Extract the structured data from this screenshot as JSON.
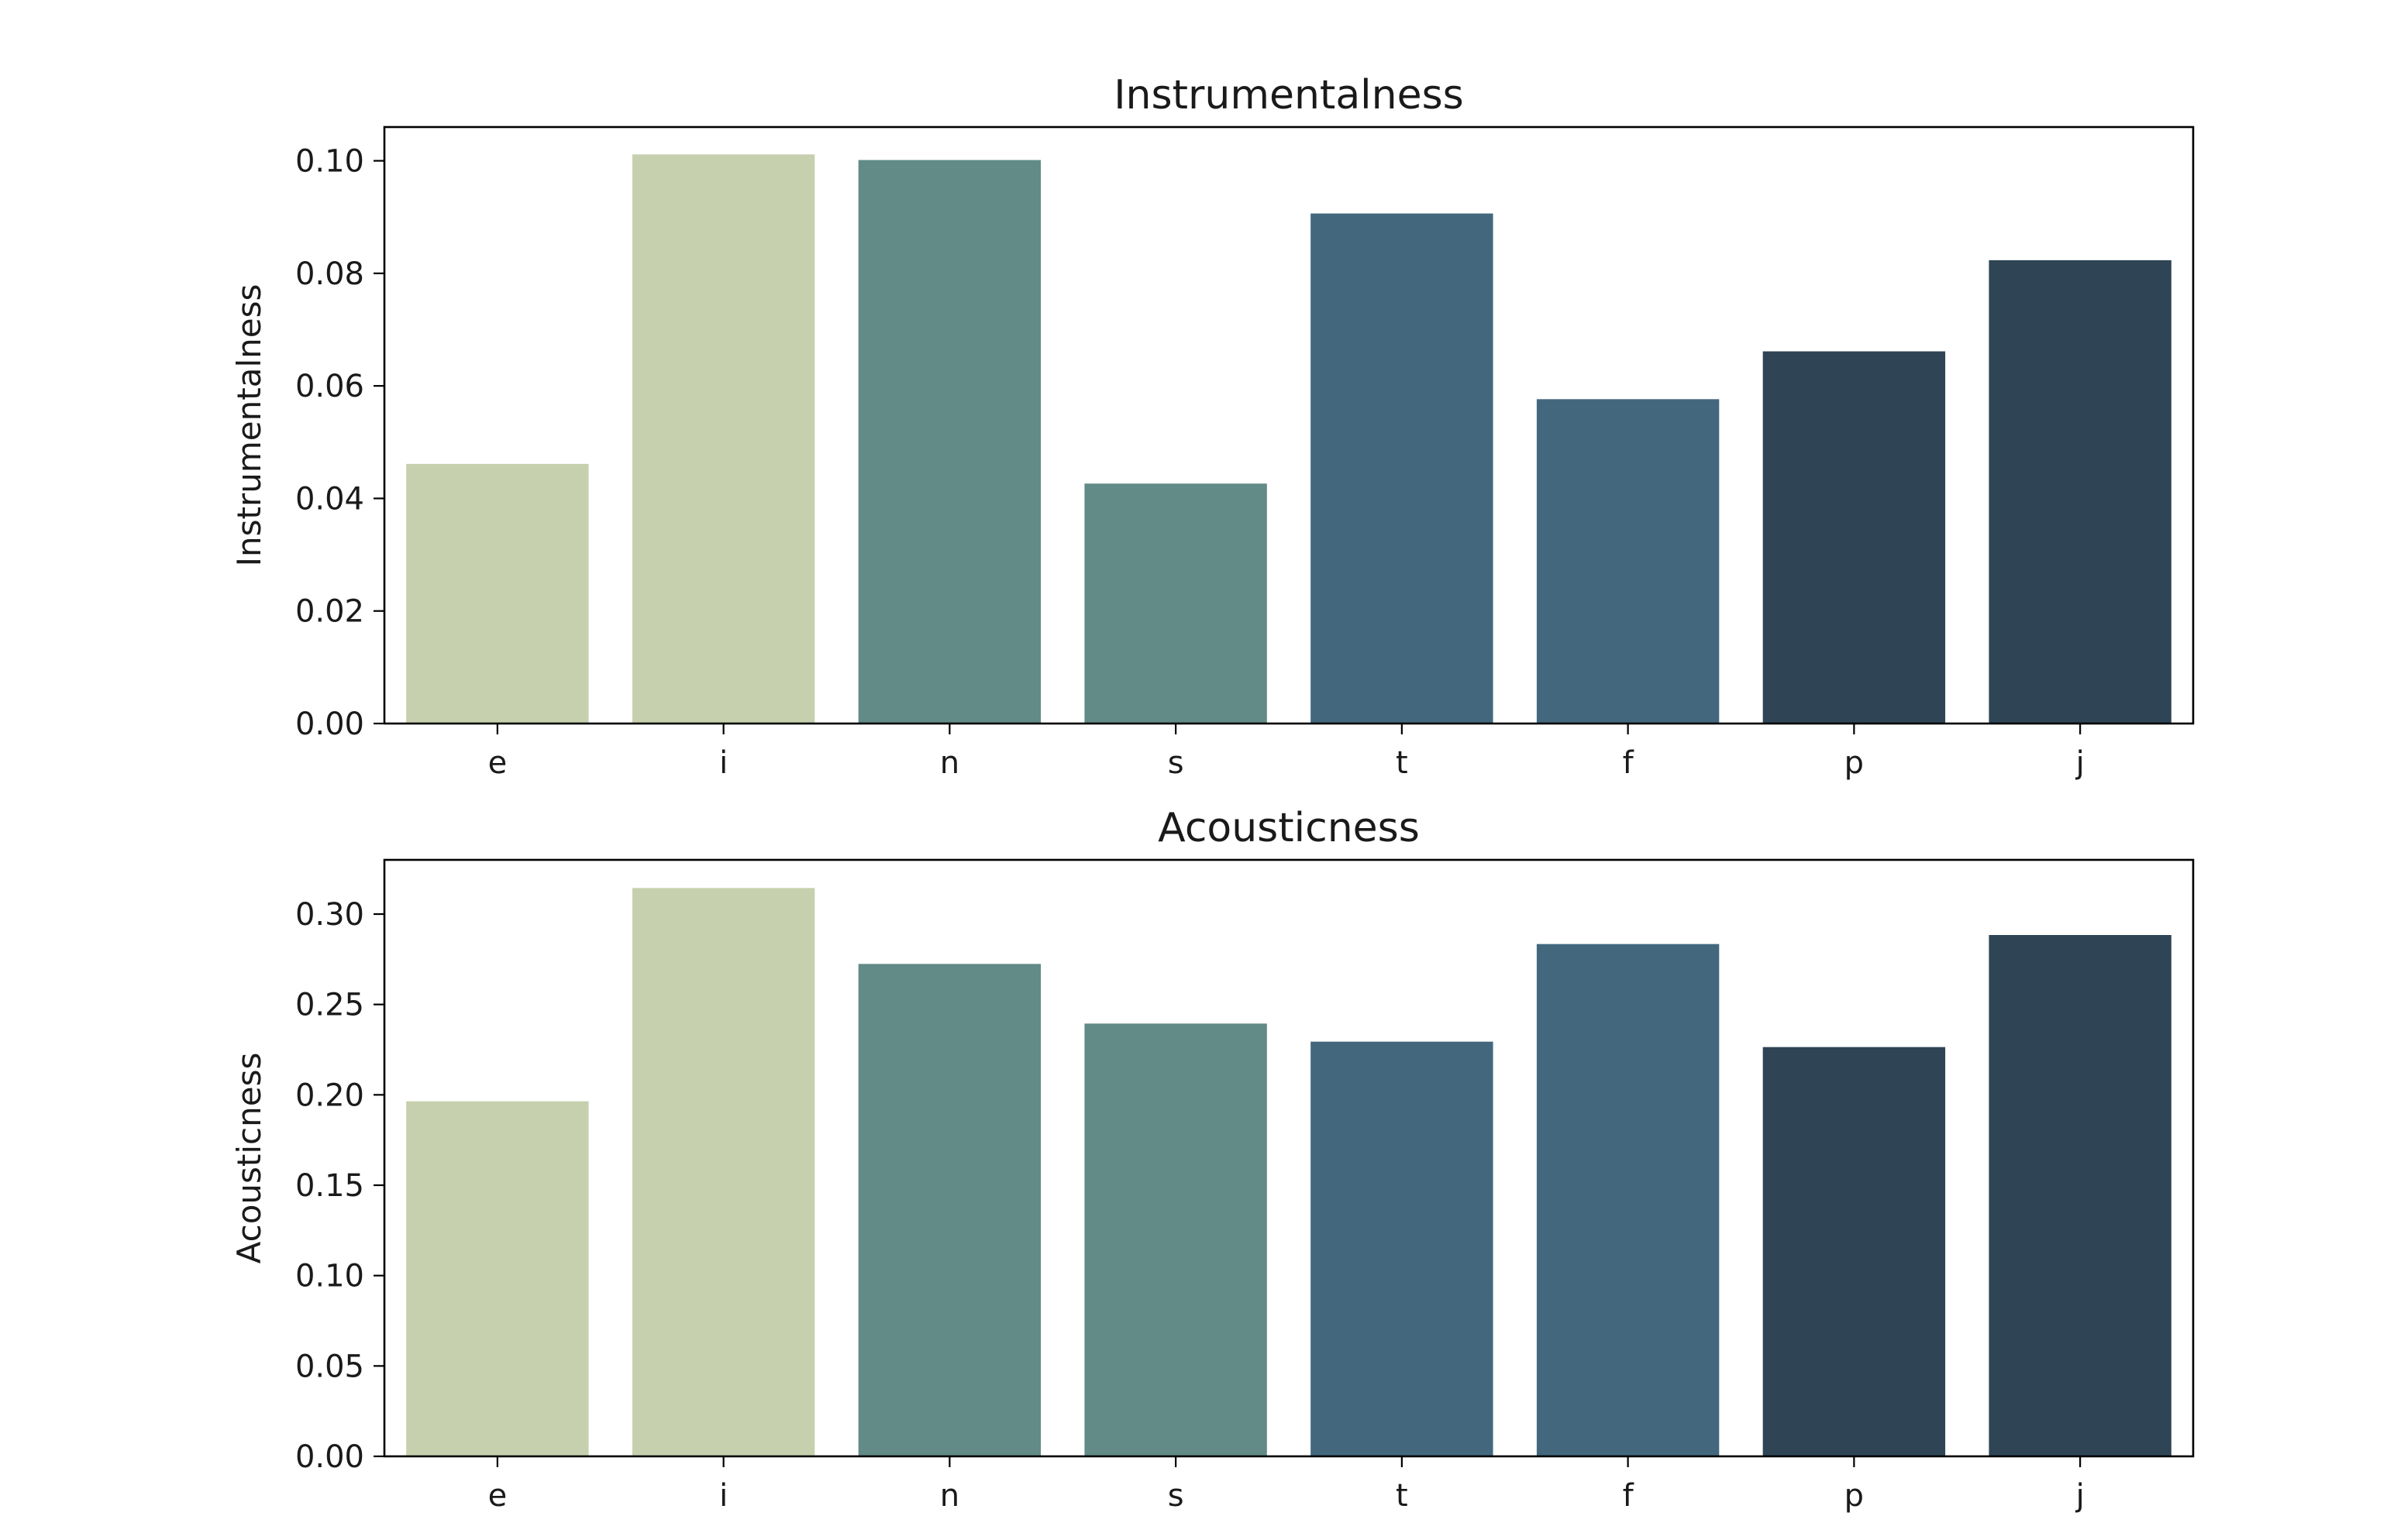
{
  "chart_data": [
    {
      "type": "bar",
      "title": "Instrumentalness",
      "xlabel": "",
      "ylabel": "Instrumentalness",
      "categories": [
        "e",
        "i",
        "n",
        "s",
        "t",
        "f",
        "p",
        "j"
      ],
      "values": [
        0.046,
        0.101,
        0.1,
        0.0425,
        0.0905,
        0.0575,
        0.066,
        0.0822
      ],
      "colors": [
        "#c7d0ae",
        "#c7d0ae",
        "#628b87",
        "#628b87",
        "#43687e",
        "#43687e",
        "#2f4555",
        "#2f4555"
      ],
      "ylim": [
        0,
        0.106
      ],
      "yticks": [
        0.0,
        0.02,
        0.04,
        0.06,
        0.08,
        0.1
      ],
      "ytick_labels": [
        "0.00",
        "0.02",
        "0.04",
        "0.06",
        "0.08",
        "0.10"
      ],
      "grid": false,
      "legend": "none"
    },
    {
      "type": "bar",
      "title": "Acousticness",
      "xlabel": "",
      "ylabel": "Acousticness",
      "categories": [
        "e",
        "i",
        "n",
        "s",
        "t",
        "f",
        "p",
        "j"
      ],
      "values": [
        0.196,
        0.314,
        0.272,
        0.239,
        0.229,
        0.283,
        0.226,
        0.288
      ],
      "colors": [
        "#c7d0ae",
        "#c7d0ae",
        "#628b87",
        "#628b87",
        "#43687e",
        "#43687e",
        "#2f4555",
        "#2f4555"
      ],
      "ylim": [
        0,
        0.33
      ],
      "yticks": [
        0.0,
        0.05,
        0.1,
        0.15,
        0.2,
        0.25,
        0.3
      ],
      "ytick_labels": [
        "0.00",
        "0.05",
        "0.10",
        "0.15",
        "0.20",
        "0.25",
        "0.30"
      ],
      "grid": false,
      "legend": "none"
    }
  ]
}
